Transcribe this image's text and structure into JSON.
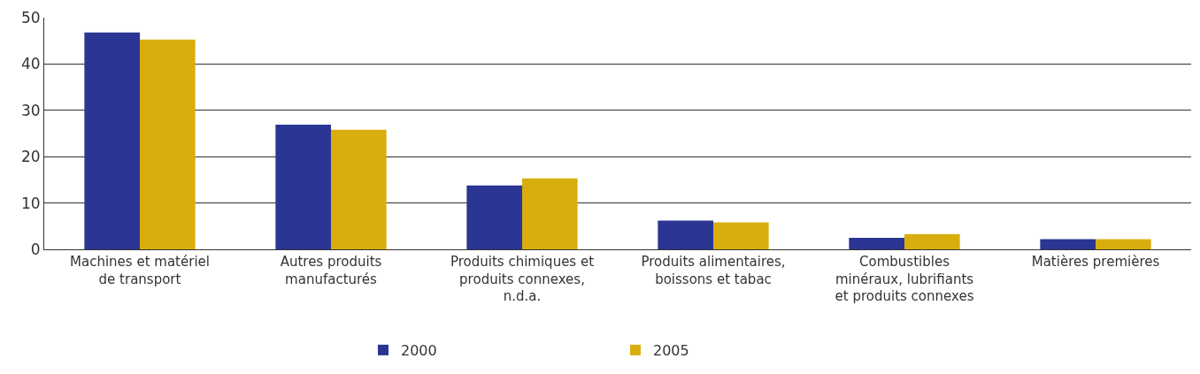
{
  "chart_data": {
    "type": "bar",
    "categories": [
      "Machines et matériel\nde transport",
      "Autres produits\nmanufacturés",
      "Produits chimiques et\nproduits connexes,\nn.d.a.",
      "Produits alimentaires,\nboissons et tabac",
      "Combustibles\nminéraux, lubrifiants\net produits connexes",
      "Matières premières"
    ],
    "series": [
      {
        "name": "2000",
        "color": "#2b3593",
        "values": [
          46.8,
          26.9,
          13.8,
          6.2,
          2.5,
          2.2
        ]
      },
      {
        "name": "2005",
        "color": "#d8ae0e",
        "values": [
          45.3,
          25.8,
          15.3,
          5.8,
          3.3,
          2.2
        ]
      }
    ],
    "ylim": [
      0,
      50
    ],
    "yticks": [
      0,
      10,
      20,
      30,
      40,
      50
    ],
    "grid": "y",
    "legend": "bottom"
  }
}
